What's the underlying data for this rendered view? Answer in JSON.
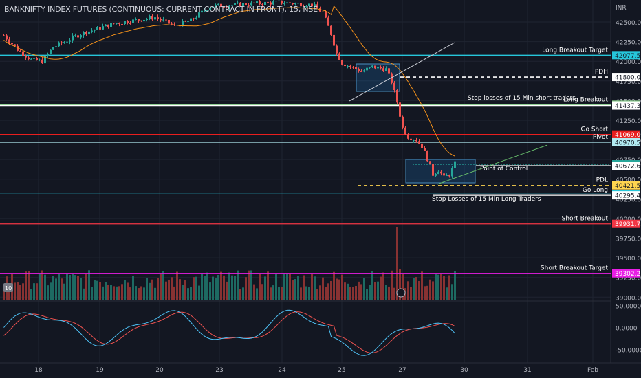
{
  "header": {
    "title": "BANKNIFTY INDEX FUTURES (CONTINUOUS: CURRENT CONTRACT IN FRONT), 15, NSE",
    "currency": "INR"
  },
  "colors": {
    "background": "#131722",
    "grid": "#1f2431",
    "up_candle": "#26a69a",
    "down_candle": "#ef5350",
    "ma_line": "#f7931a",
    "cyan_line": "#26c6da",
    "green_line": "#81c784",
    "red_line": "#e91e1e",
    "white_line": "#ffffff",
    "pink_line": "#f23645",
    "magenta_line": "#e91ee6"
  },
  "chart_data": {
    "type": "candlestick",
    "x_ticks": [
      "18",
      "19",
      "20",
      "23",
      "24",
      "25",
      "27",
      "30",
      "31",
      "Feb"
    ],
    "y_ticks": [
      "42500.00",
      "42250.00",
      "42000.00",
      "41750.00",
      "41500.00",
      "41250.00",
      "41000.00",
      "40750.00",
      "40500.00",
      "40250.00",
      "40000.00",
      "39750.00",
      "39500.00",
      "39250.00",
      "39000.00"
    ],
    "price_range": [
      38950,
      42780
    ],
    "levels": [
      {
        "label": "Long Breakout Target",
        "price": 42077.55,
        "price_text": "42077.55",
        "color": "#26c6da"
      },
      {
        "label": "PDH",
        "price": 41800.05,
        "price_text": "41800.05",
        "color": "#ffffff",
        "dashed": true
      },
      {
        "label": "Long Breakout",
        "price": 41448.1,
        "price_text": "41448.10",
        "color": "#81c784"
      },
      {
        "label": "",
        "price": 41437.3,
        "price_text": "41437.30",
        "color": "#ffffff"
      },
      {
        "label": "Go Short",
        "price": 41069.0,
        "price_text": "41069.00",
        "color": "#e91e1e"
      },
      {
        "label": "Pivot",
        "price": 40970.5,
        "price_text": "40970.50",
        "color": "#b2ebf2"
      },
      {
        "label": "",
        "price": 40689.9,
        "price_text": "40689.90",
        "color": "#26a69a",
        "dotted": true
      },
      {
        "label": "",
        "price": 40672.6,
        "price_text": "40672.60",
        "color": "#ffffff"
      },
      {
        "label": "PDL",
        "price": 40421.55,
        "price_text": "40421.55",
        "color": "#ffd54f",
        "dashed": true
      },
      {
        "label": "",
        "price": 40310.8,
        "price_text": "40310.80",
        "color": "#26c6da"
      },
      {
        "label": "Go Long",
        "price": 40295.4,
        "price_text": "40295.40",
        "color": "#ffffff"
      },
      {
        "label": "Short Breakout",
        "price": 39931.75,
        "price_text": "39931.75",
        "color": "#f23645"
      },
      {
        "label": "Short Breakout Target",
        "price": 39302.25,
        "price_text": "39302.25",
        "color": "#e91ee6"
      }
    ],
    "annotations": [
      "Stop losses of 15 Min short traders",
      "Point of Control",
      "Stop Losses of  15 Min Long Traders"
    ],
    "oscillator_ticks": [
      "50.0000",
      "0.0000",
      "-50.0000"
    ],
    "oscillator_range": [
      -80,
      60
    ],
    "badges": [
      "10"
    ]
  }
}
